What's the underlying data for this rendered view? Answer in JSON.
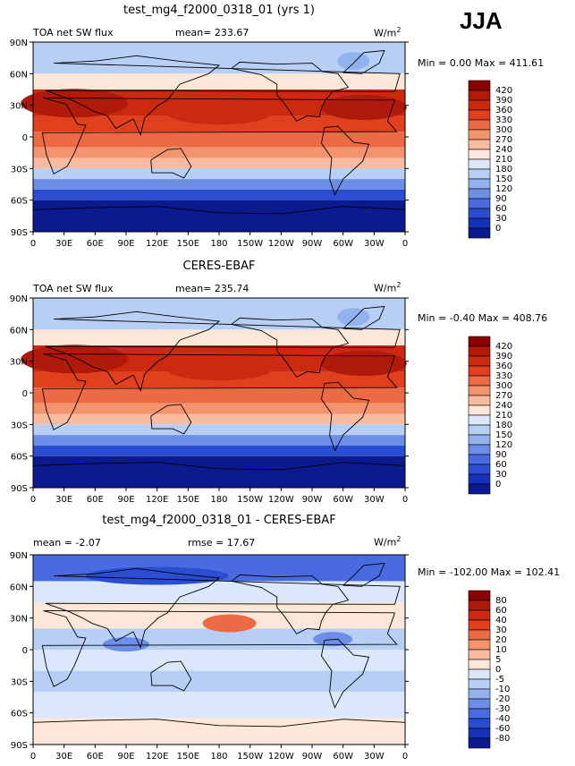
{
  "season": "JJA",
  "panels": [
    {
      "title": "test_mg4_f2000_0318_01 (yrs 1)",
      "left_label": "TOA net SW flux",
      "stat_label": "mean=  233.67",
      "units": "W/m",
      "units_exp": "2",
      "minmax": "Min =   0.00 Max = 411.61",
      "colorbar": [
        "420",
        "390",
        "360",
        "330",
        "300",
        "270",
        "240",
        "210",
        "180",
        "150",
        "120",
        "90",
        "60",
        "30",
        "0"
      ],
      "colors": [
        "#8b0000",
        "#b01a0a",
        "#cc2a10",
        "#e0401e",
        "#ec6a44",
        "#f4946e",
        "#f8bba0",
        "#fde7d8",
        "#dbe8fb",
        "#b7cff5",
        "#92b2ee",
        "#6c8ee6",
        "#4a6be0",
        "#2a4dd2",
        "#1531b8",
        "#0b1a8f"
      ],
      "chart_data": {
        "type": "heatmap",
        "title": "test_mg4_f2000_0318_01 (yrs 1)",
        "variable": "TOA net SW flux",
        "mean": 233.67,
        "min": 0.0,
        "max": 411.61,
        "levels": [
          0,
          30,
          60,
          90,
          120,
          150,
          180,
          210,
          240,
          270,
          300,
          330,
          360,
          390,
          420
        ]
      }
    },
    {
      "title": "CERES-EBAF",
      "left_label": "TOA net SW flux",
      "stat_label": "mean=  235.74",
      "units": "W/m",
      "units_exp": "2",
      "minmax": "Min =  -0.40 Max = 408.76",
      "colorbar": [
        "420",
        "390",
        "360",
        "330",
        "300",
        "270",
        "240",
        "210",
        "180",
        "150",
        "120",
        "90",
        "60",
        "30",
        "0"
      ],
      "colors": [
        "#8b0000",
        "#b01a0a",
        "#cc2a10",
        "#e0401e",
        "#ec6a44",
        "#f4946e",
        "#f8bba0",
        "#fde7d8",
        "#dbe8fb",
        "#b7cff5",
        "#92b2ee",
        "#6c8ee6",
        "#4a6be0",
        "#2a4dd2",
        "#1531b8",
        "#0b1a8f"
      ],
      "chart_data": {
        "type": "heatmap",
        "title": "CERES-EBAF",
        "variable": "TOA net SW flux",
        "mean": 235.74,
        "min": -0.4,
        "max": 408.76,
        "levels": [
          0,
          30,
          60,
          90,
          120,
          150,
          180,
          210,
          240,
          270,
          300,
          330,
          360,
          390,
          420
        ]
      }
    },
    {
      "title": "test_mg4_f2000_0318_01 - CERES-EBAF",
      "left_label": "mean =  -2.07",
      "stat_label": "rmse =  17.67",
      "units": "W/m",
      "units_exp": "2",
      "minmax": "Min = -102.00 Max = 102.41",
      "colorbar": [
        "80",
        "60",
        "40",
        "30",
        "20",
        "10",
        "5",
        "0",
        "-5",
        "-10",
        "-20",
        "-30",
        "-40",
        "-60",
        "-80"
      ],
      "colors": [
        "#8b0000",
        "#b01a0a",
        "#cc2a10",
        "#e0401e",
        "#ec6a44",
        "#f4946e",
        "#f8bba0",
        "#fde7d8",
        "#dbe8fb",
        "#b7cff5",
        "#92b2ee",
        "#6c8ee6",
        "#4a6be0",
        "#2a4dd2",
        "#1531b8",
        "#0b1a8f"
      ],
      "chart_data": {
        "type": "heatmap",
        "title": "test_mg4_f2000_0318_01 - CERES-EBAF",
        "mean": -2.07,
        "rmse": 17.67,
        "min": -102.0,
        "max": 102.41,
        "levels": [
          -80,
          -60,
          -40,
          -30,
          -20,
          -10,
          -5,
          0,
          5,
          10,
          20,
          30,
          40,
          60,
          80
        ]
      }
    }
  ],
  "lat_ticks": [
    "90N",
    "60N",
    "30N",
    "0",
    "30S",
    "60S",
    "90S"
  ],
  "lon_ticks": [
    "0",
    "30E",
    "60E",
    "90E",
    "120E",
    "150E",
    "180",
    "150W",
    "120W",
    "90W",
    "60W",
    "30W",
    "0"
  ]
}
